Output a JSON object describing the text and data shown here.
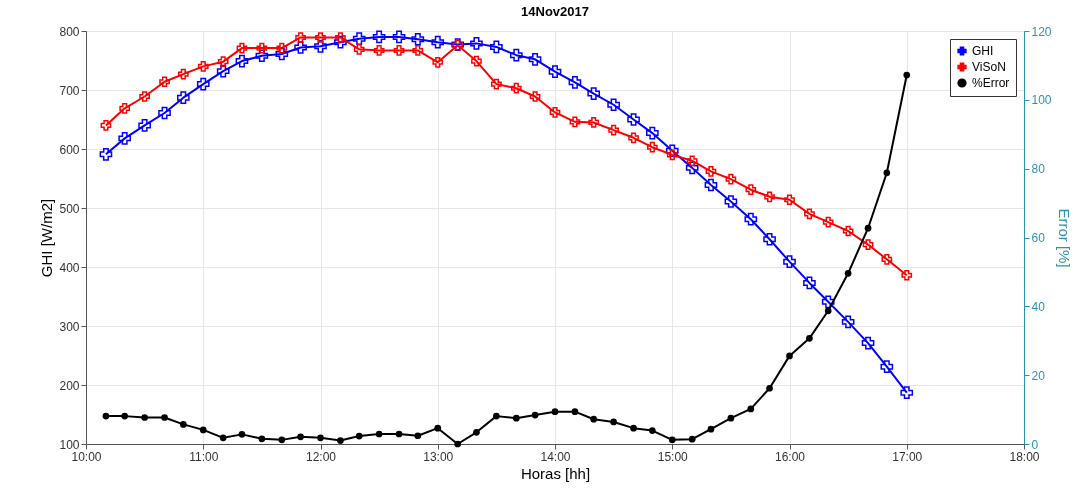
{
  "chart_data": {
    "type": "line",
    "title": "14Nov2017",
    "xlabel": "Horas [hh]",
    "ylabel": "GHI [W/m2]",
    "y2label": "Error [%]",
    "x": [
      10.17,
      10.33,
      10.5,
      10.67,
      10.83,
      11,
      11.17,
      11.33,
      11.5,
      11.67,
      11.83,
      12,
      12.17,
      12.33,
      12.5,
      12.67,
      12.83,
      13,
      13.17,
      13.33,
      13.5,
      13.67,
      13.83,
      14,
      14.17,
      14.33,
      14.5,
      14.67,
      14.83,
      15,
      15.17,
      15.33,
      15.5,
      15.67,
      15.83,
      16,
      16.17,
      16.33,
      16.5,
      16.67,
      16.83,
      17
    ],
    "series": [
      {
        "name": "GHI",
        "color": "#0000ff",
        "marker": "cross",
        "values": [
          591,
          618,
          640,
          661,
          687,
          710,
          732,
          749,
          758,
          761,
          772,
          774,
          781,
          787,
          790,
          790,
          786,
          781,
          777,
          779,
          773,
          759,
          752,
          731,
          713,
          694,
          675,
          650,
          627,
          597,
          568,
          539,
          511,
          481,
          447,
          409,
          373,
          341,
          307,
          271,
          231,
          187
        ]
      },
      {
        "name": "ViSoN",
        "color": "#ff0000",
        "marker": "cross",
        "values": [
          640,
          669,
          689,
          714,
          727,
          740,
          748,
          771,
          771,
          771,
          789,
          789,
          789,
          769,
          767,
          767,
          767,
          747,
          776,
          749,
          710,
          703,
          689,
          662,
          646,
          645,
          632,
          619,
          603,
          590,
          580,
          562,
          549,
          531,
          519,
          514,
          490,
          476,
          461,
          438,
          413,
          386
        ]
      },
      {
        "name": "%Error",
        "color": "#000000",
        "marker": "circle",
        "axis": "y2",
        "values": [
          8.1,
          8.1,
          7.7,
          7.7,
          5.7,
          4.1,
          1.8,
          2.8,
          1.5,
          1.2,
          2.1,
          1.8,
          1.0,
          2.3,
          2.9,
          2.9,
          2.4,
          4.6,
          0,
          3.4,
          8.1,
          7.5,
          8.4,
          9.4,
          9.4,
          7.2,
          6.4,
          4.6,
          3.9,
          1.2,
          1.4,
          4.3,
          7.5,
          10.2,
          16.2,
          25.6,
          30.7,
          38.7,
          49.6,
          62.7,
          78.8,
          107.2
        ]
      }
    ],
    "xlim": [
      10,
      18
    ],
    "xticks": [
      {
        "value": 10,
        "label": "10:00"
      },
      {
        "value": 11,
        "label": "11:00"
      },
      {
        "value": 12,
        "label": "12:00"
      },
      {
        "value": 13,
        "label": "13:00"
      },
      {
        "value": 14,
        "label": "14:00"
      },
      {
        "value": 15,
        "label": "15:00"
      },
      {
        "value": 16,
        "label": "16:00"
      },
      {
        "value": 17,
        "label": "17:00"
      },
      {
        "value": 18,
        "label": "18:00"
      }
    ],
    "ylim": [
      100,
      800
    ],
    "yticks": [
      100,
      200,
      300,
      400,
      500,
      600,
      700,
      800
    ],
    "y2lim": [
      0,
      120
    ],
    "y2ticks": [
      0,
      20,
      40,
      60,
      80,
      100,
      120
    ],
    "grid": true,
    "legend": "top right",
    "line_style": "solid"
  }
}
